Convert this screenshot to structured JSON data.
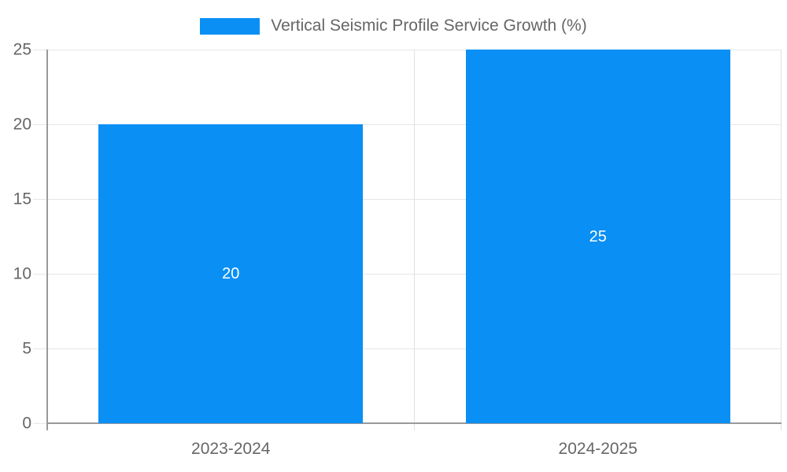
{
  "chart_data": {
    "type": "bar",
    "title": "",
    "legend": [
      "Vertical Seismic Profile Service Growth (%)"
    ],
    "legend_position": "top",
    "categories": [
      "2023-2024",
      "2024-2025"
    ],
    "series": [
      {
        "name": "Vertical Seismic Profile Service Growth (%)",
        "values": [
          20,
          25
        ]
      }
    ],
    "value_labels": [
      "20",
      "25"
    ],
    "xlabel": "",
    "ylabel": "",
    "ylim": [
      0,
      25
    ],
    "yticks": [
      0,
      5,
      10,
      15,
      20,
      25
    ],
    "grid": true,
    "bar_width_fraction": 0.72,
    "colors": {
      "bar": "#0A8FF4",
      "grid_line": "#E6E6E6",
      "category_boundary": "#E0E0E0",
      "axis_line": "#999999",
      "tick_text": "#666666",
      "legend_text": "#666666",
      "value_label_text": "#FFFFFF"
    }
  }
}
